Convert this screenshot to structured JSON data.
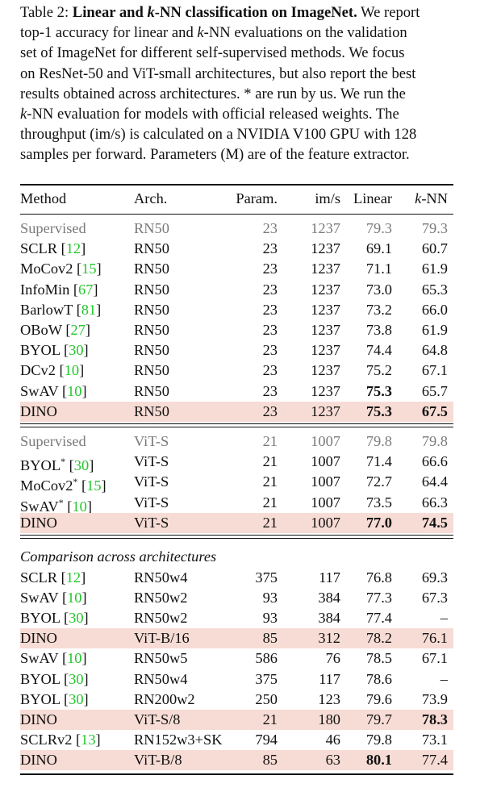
{
  "caption": {
    "label": "Table 2: ",
    "title_a": "Linear and ",
    "title_k": "k",
    "title_b": "-NN classification on ImageNet.",
    "line1_rest": " We report",
    "line2": "top-1 accuracy for linear and ",
    "line2_k": "k",
    "line2_b": "-NN evaluations on the validation",
    "line3": "set of ImageNet for different self-supervised methods. We focus",
    "line4": "on ResNet-50 and ViT-small architectures, but also report the best",
    "line5": "results obtained across architectures. * are run by us. We run the",
    "line6_k": "k",
    "line6": "-NN evaluation for models with official released weights.  The",
    "line7": "throughput (im/s) is calculated on a NVIDIA V100 GPU with 128",
    "line8": "samples per forward. Parameters (M) are of the feature extractor."
  },
  "header": {
    "method": "Method",
    "arch": "Arch.",
    "param": "Param.",
    "ims": "im/s",
    "linear": "Linear",
    "knn_k": "k",
    "knn": "-NN"
  },
  "section3_title": "Comparison across architectures",
  "colors": {
    "highlight": "#f7dcd5",
    "citation": "#23c62b",
    "muted": "#7a7a7a"
  },
  "rows": [
    {
      "m": "Supervised",
      "cite": "",
      "star": false,
      "arch": "RN50",
      "param": "23",
      "ims": "1237",
      "linear": "79.3",
      "knn": "79.3",
      "muted": true,
      "hl": false,
      "bl": false,
      "bk": false
    },
    {
      "m": "SCLR",
      "cite": "12",
      "star": false,
      "arch": "RN50",
      "param": "23",
      "ims": "1237",
      "linear": "69.1",
      "knn": "60.7",
      "muted": false,
      "hl": false,
      "bl": false,
      "bk": false
    },
    {
      "m": "MoCov2",
      "cite": "15",
      "star": false,
      "arch": "RN50",
      "param": "23",
      "ims": "1237",
      "linear": "71.1",
      "knn": "61.9",
      "muted": false,
      "hl": false,
      "bl": false,
      "bk": false
    },
    {
      "m": "InfoMin",
      "cite": "67",
      "star": false,
      "arch": "RN50",
      "param": "23",
      "ims": "1237",
      "linear": "73.0",
      "knn": "65.3",
      "muted": false,
      "hl": false,
      "bl": false,
      "bk": false
    },
    {
      "m": "BarlowT",
      "cite": "81",
      "star": false,
      "arch": "RN50",
      "param": "23",
      "ims": "1237",
      "linear": "73.2",
      "knn": "66.0",
      "muted": false,
      "hl": false,
      "bl": false,
      "bk": false
    },
    {
      "m": "OBoW",
      "cite": "27",
      "star": false,
      "arch": "RN50",
      "param": "23",
      "ims": "1237",
      "linear": "73.8",
      "knn": "61.9",
      "muted": false,
      "hl": false,
      "bl": false,
      "bk": false
    },
    {
      "m": "BYOL",
      "cite": "30",
      "star": false,
      "arch": "RN50",
      "param": "23",
      "ims": "1237",
      "linear": "74.4",
      "knn": "64.8",
      "muted": false,
      "hl": false,
      "bl": false,
      "bk": false
    },
    {
      "m": "DCv2",
      "cite": "10",
      "star": false,
      "arch": "RN50",
      "param": "23",
      "ims": "1237",
      "linear": "75.2",
      "knn": "67.1",
      "muted": false,
      "hl": false,
      "bl": false,
      "bk": false
    },
    {
      "m": "SwAV",
      "cite": "10",
      "star": false,
      "arch": "RN50",
      "param": "23",
      "ims": "1237",
      "linear": "75.3",
      "knn": "65.7",
      "muted": false,
      "hl": false,
      "bl": true,
      "bk": false
    },
    {
      "m": "DINO",
      "cite": "",
      "star": false,
      "arch": "RN50",
      "param": "23",
      "ims": "1237",
      "linear": "75.3",
      "knn": "67.5",
      "muted": false,
      "hl": true,
      "bl": true,
      "bk": true
    },
    {
      "m": "Supervised",
      "cite": "",
      "star": false,
      "arch": "ViT-S",
      "param": "21",
      "ims": "1007",
      "linear": "79.8",
      "knn": "79.8",
      "muted": true,
      "hl": false,
      "bl": false,
      "bk": false
    },
    {
      "m": "BYOL",
      "cite": "30",
      "star": true,
      "arch": "ViT-S",
      "param": "21",
      "ims": "1007",
      "linear": "71.4",
      "knn": "66.6",
      "muted": false,
      "hl": false,
      "bl": false,
      "bk": false
    },
    {
      "m": "MoCov2",
      "cite": "15",
      "star": true,
      "arch": "ViT-S",
      "param": "21",
      "ims": "1007",
      "linear": "72.7",
      "knn": "64.4",
      "muted": false,
      "hl": false,
      "bl": false,
      "bk": false
    },
    {
      "m": "SwAV",
      "cite": "10",
      "star": true,
      "arch": "ViT-S",
      "param": "21",
      "ims": "1007",
      "linear": "73.5",
      "knn": "66.3",
      "muted": false,
      "hl": false,
      "bl": false,
      "bk": false
    },
    {
      "m": "DINO",
      "cite": "",
      "star": false,
      "arch": "ViT-S",
      "param": "21",
      "ims": "1007",
      "linear": "77.0",
      "knn": "74.5",
      "muted": false,
      "hl": true,
      "bl": true,
      "bk": true
    },
    {
      "m": "SCLR",
      "cite": "12",
      "star": false,
      "arch": "RN50w4",
      "param": "375",
      "ims": "117",
      "linear": "76.8",
      "knn": "69.3",
      "muted": false,
      "hl": false,
      "bl": false,
      "bk": false
    },
    {
      "m": "SwAV",
      "cite": "10",
      "star": false,
      "arch": "RN50w2",
      "param": "93",
      "ims": "384",
      "linear": "77.3",
      "knn": "67.3",
      "muted": false,
      "hl": false,
      "bl": false,
      "bk": false
    },
    {
      "m": "BYOL",
      "cite": "30",
      "star": false,
      "arch": "RN50w2",
      "param": "93",
      "ims": "384",
      "linear": "77.4",
      "knn": "–",
      "muted": false,
      "hl": false,
      "bl": false,
      "bk": false
    },
    {
      "m": "DINO",
      "cite": "",
      "star": false,
      "arch": "ViT-B/16",
      "param": "85",
      "ims": "312",
      "linear": "78.2",
      "knn": "76.1",
      "muted": false,
      "hl": true,
      "bl": false,
      "bk": false
    },
    {
      "m": "SwAV",
      "cite": "10",
      "star": false,
      "arch": "RN50w5",
      "param": "586",
      "ims": "76",
      "linear": "78.5",
      "knn": "67.1",
      "muted": false,
      "hl": false,
      "bl": false,
      "bk": false
    },
    {
      "m": "BYOL",
      "cite": "30",
      "star": false,
      "arch": "RN50w4",
      "param": "375",
      "ims": "117",
      "linear": "78.6",
      "knn": "–",
      "muted": false,
      "hl": false,
      "bl": false,
      "bk": false
    },
    {
      "m": "BYOL",
      "cite": "30",
      "star": false,
      "arch": "RN200w2",
      "param": "250",
      "ims": "123",
      "linear": "79.6",
      "knn": "73.9",
      "muted": false,
      "hl": false,
      "bl": false,
      "bk": false
    },
    {
      "m": "DINO",
      "cite": "",
      "star": false,
      "arch": "ViT-S/8",
      "param": "21",
      "ims": "180",
      "linear": "79.7",
      "knn": "78.3",
      "muted": false,
      "hl": true,
      "bl": false,
      "bk": true
    },
    {
      "m": "SCLRv2",
      "cite": "13",
      "star": false,
      "arch": "RN152w3+SK",
      "param": "794",
      "ims": "46",
      "linear": "79.8",
      "knn": "73.1",
      "muted": false,
      "hl": false,
      "bl": false,
      "bk": false
    },
    {
      "m": "DINO",
      "cite": "",
      "star": false,
      "arch": "ViT-B/8",
      "param": "85",
      "ims": "63",
      "linear": "80.1",
      "knn": "77.4",
      "muted": false,
      "hl": true,
      "bl": true,
      "bk": false
    }
  ]
}
